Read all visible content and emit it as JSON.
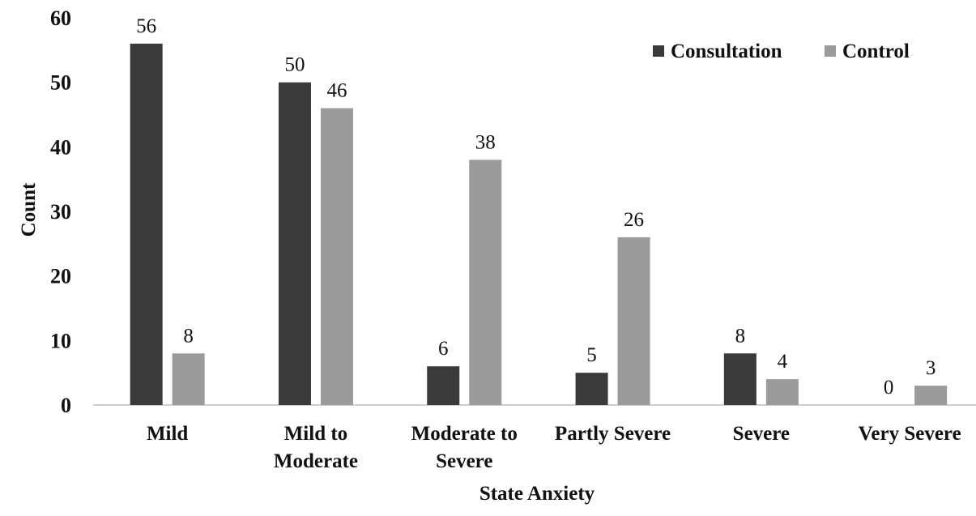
{
  "chart_data": {
    "type": "bar",
    "title": "",
    "xlabel": "State Anxiety",
    "ylabel": "Count",
    "ylim": [
      0,
      60
    ],
    "yticks": [
      0,
      10,
      20,
      30,
      40,
      50,
      60
    ],
    "grid": false,
    "legend_position": "top-right",
    "categories": [
      [
        "Mild"
      ],
      [
        "Mild to",
        "Moderate"
      ],
      [
        "Moderate to",
        "Severe"
      ],
      [
        "Partly Severe"
      ],
      [
        "Severe"
      ],
      [
        "Very Severe"
      ]
    ],
    "series": [
      {
        "name": "Consultation",
        "color": "#3a3a3a",
        "values": [
          56,
          50,
          6,
          5,
          8,
          0
        ]
      },
      {
        "name": "Control",
        "color": "#9b9b9b",
        "values": [
          8,
          46,
          38,
          26,
          4,
          3
        ]
      }
    ]
  }
}
